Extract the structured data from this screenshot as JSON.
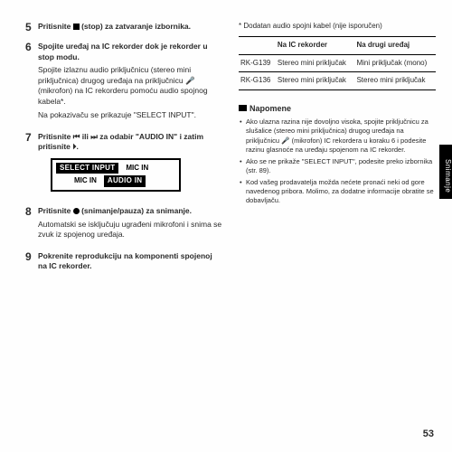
{
  "leftColumn": {
    "steps": [
      {
        "num": "5",
        "title_prefix": "Pritisnite ",
        "title_suffix": " (stop) za zatvaranje izbornika.",
        "icon": "stop",
        "paragraphs": []
      },
      {
        "num": "6",
        "title": "Spojite uređaj na IC rekorder dok je rekorder u stop modu.",
        "paragraphs": [
          "Spojite izlaznu audio priključnicu (stereo mini priključnica) drugog uređaja na priključnicu 🎤 (mikrofon) na IC rekor­deru pomoću audio spojnog kabela*.",
          "Na pokazivaču se prikazuje \"SELECT INPUT\"."
        ]
      },
      {
        "num": "7",
        "title_parts": [
          "Pritisnite ",
          "⏮",
          " ili ",
          "⏭",
          " za odabir \"AUDIO IN\" i zatim pritisnite ",
          "⏵",
          "."
        ],
        "paragraphs": []
      },
      {
        "num": "8",
        "title_prefix": "Pritisnite ",
        "title_suffix": " (snimanje/pauza) za snimanje.",
        "icon": "rec",
        "paragraphs": [
          "Automatski se isključuju ugrađeni mikrofoni i snima se zvuk iz spojenog uređaja."
        ]
      },
      {
        "num": "9",
        "title": "Pokrenite reprodukciju na kompo­nenti spojenoj na IC rekorder.",
        "paragraphs": []
      }
    ],
    "lcd": {
      "row1": [
        "SELECT INPUT",
        "MIC IN"
      ],
      "row2": [
        "MIC IN",
        "AUDIO IN"
      ],
      "row1_selected": 0,
      "row2_selected": 1
    }
  },
  "rightColumn": {
    "footnote": "* Dodatan audio spojni kabel (nije isporučen)",
    "table": {
      "headers": [
        "",
        "Na IC rekorder",
        "Na drugi uređaj"
      ],
      "rows": [
        [
          "RK-G139",
          "Stereo mini priključak",
          "Mini priključak (mono)"
        ],
        [
          "RK-G136",
          "Stereo mini priključak",
          "Stereo mini priključak"
        ]
      ]
    },
    "notesTitle": "Napomene",
    "notes": [
      "Ako ulazna razina nije dovoljno visoka, spojite priključnicu za slušalice (stereo mini priključnica) drugog uređaja na priključnicu 🎤 (mikrofon) IC rekordera u koraku 6 i pode­site razinu glasnoće na uređaju spojenom na IC rekorder.",
      "Ako se ne prikaže \"SELECT INPUT\", podesite preko izbornika (str. 89).",
      "Kod vašeg prodavatelja možda nećete pronaći neki od gore navedenog pribora. Molimo, za dodatne informacije obratite se dobavljaču."
    ]
  },
  "sideTab": "Snimanje",
  "pageNumber": "53"
}
